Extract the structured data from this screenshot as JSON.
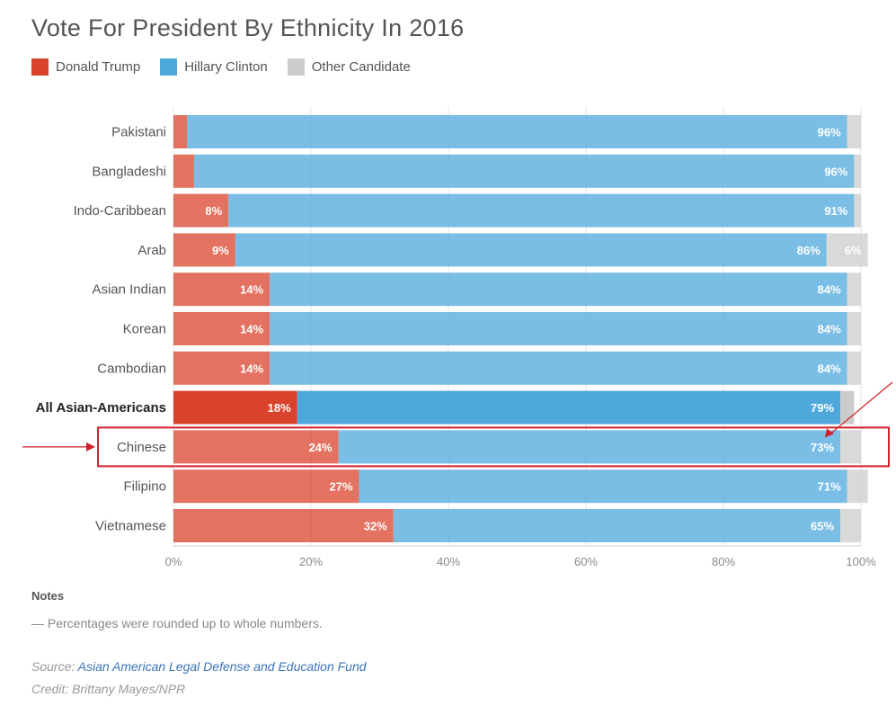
{
  "chart_data": {
    "type": "bar",
    "orientation": "horizontal",
    "stacked": true,
    "title": "Vote For President By Ethnicity In 2016",
    "categories": [
      "Pakistani",
      "Bangladeshi",
      "Indo-Caribbean",
      "Arab",
      "Asian Indian",
      "Korean",
      "Cambodian",
      "All Asian-Americans",
      "Chinese",
      "Filipino",
      "Vietnamese"
    ],
    "highlighted_category": "All Asian-Americans",
    "series": [
      {
        "name": "Donald Trump",
        "color": "#d9432c",
        "values": [
          2,
          3,
          8,
          9,
          14,
          14,
          14,
          18,
          24,
          27,
          32
        ],
        "labels": [
          "",
          "",
          "8%",
          "9%",
          "14%",
          "14%",
          "14%",
          "18%",
          "24%",
          "27%",
          "32%"
        ]
      },
      {
        "name": "Hillary Clinton",
        "color": "#4fa8dc",
        "values": [
          96,
          96,
          91,
          86,
          84,
          84,
          84,
          79,
          73,
          71,
          65
        ],
        "labels": [
          "96%",
          "96%",
          "91%",
          "86%",
          "84%",
          "84%",
          "84%",
          "79%",
          "73%",
          "71%",
          "65%"
        ]
      },
      {
        "name": "Other Candidate",
        "color": "#cccccc",
        "values": [
          2,
          1,
          1,
          6,
          2,
          2,
          2,
          2,
          3,
          3,
          3
        ],
        "labels": [
          "",
          "",
          "",
          "6%",
          "",
          "",
          "",
          "",
          "",
          "",
          ""
        ]
      }
    ],
    "x_ticks": [
      0,
      20,
      40,
      60,
      80,
      100
    ],
    "x_tick_labels": [
      "0%",
      "20%",
      "40%",
      "60%",
      "80%",
      "100%"
    ],
    "xlim": [
      0,
      100
    ],
    "grid": true,
    "legend_position": "top-left",
    "annotation": {
      "type": "highlight-box-with-arrows",
      "target": "Chinese"
    }
  },
  "notes": {
    "heading": "Notes",
    "text": "— Percentages were rounded up to whole numbers."
  },
  "source": {
    "label": "Source:",
    "link_text": "Asian American Legal Defense and Education Fund"
  },
  "credit": "Credit: Brittany Mayes/NPR"
}
